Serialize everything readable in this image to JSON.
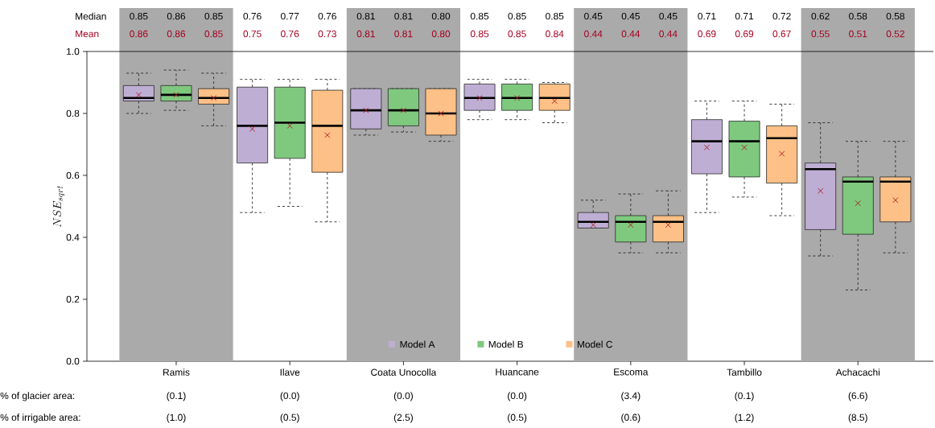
{
  "chart_data": {
    "type": "box",
    "ylabel": "NSE_{sqrt}",
    "categories": [
      "Ramis",
      "Ilave",
      "Coata Unocolla",
      "Huancane",
      "Escoma",
      "Tambillo",
      "Achacachi"
    ],
    "ylim": [
      0,
      1
    ],
    "yticks": [
      {
        "value": 0,
        "label": "0.0"
      },
      {
        "value": 0.2,
        "label": "0.2"
      },
      {
        "value": 0.4,
        "label": "0.4"
      },
      {
        "value": 0.6,
        "label": "0.6"
      },
      {
        "value": 0.8,
        "label": "0.8"
      },
      {
        "value": 1,
        "label": "1.0"
      }
    ],
    "grid": false,
    "legend": "bottom",
    "bands": [
      {
        "axis": "x",
        "from": "Ramis",
        "to": "Ramis",
        "color": "#aaaaaa"
      },
      {
        "axis": "x",
        "from": "Coata Unocolla",
        "to": "Coata Unocolla",
        "color": "#aaaaaa"
      },
      {
        "axis": "x",
        "from": "Escoma",
        "to": "Escoma",
        "color": "#aaaaaa"
      },
      {
        "axis": "x",
        "from": "Achacachi",
        "to": "Achacachi",
        "color": "#aaaaaa"
      }
    ],
    "annotations": [
      "Median",
      "0.85",
      "0.86",
      "0.85",
      "0.76",
      "0.77",
      "0.76",
      "0.81",
      "0.81",
      "0.80",
      "0.85",
      "0.85",
      "0.85",
      "0.45",
      "0.45",
      "0.45",
      "0.71",
      "0.71",
      "0.72",
      "0.62",
      "0.58",
      "0.58",
      "Mean",
      "0.86",
      "0.86",
      "0.85",
      "0.75",
      "0.76",
      "0.73",
      "0.81",
      "0.81",
      "0.80",
      "0.85",
      "0.85",
      "0.84",
      "0.44",
      "0.44",
      "0.44",
      "0.69",
      "0.69",
      "0.67",
      "0.55",
      "0.51",
      "0.52",
      "% of glacier area:",
      "(0.1)",
      "(0.0)",
      "(0.0)",
      "(0.0)",
      "(3.4)",
      "(0.1)",
      "(6.6)",
      "% of irrigable area:",
      "(1.0)",
      "(0.5)",
      "(2.5)",
      "(0.5)",
      "(0.6)",
      "(1.2)",
      "(8.5)"
    ],
    "series": [
      {
        "name": "Model A",
        "color": "#bfaed4",
        "boxes": [
          {
            "low": 0.8,
            "q1": 0.84,
            "median": 0.85,
            "q3": 0.89,
            "high": 0.93,
            "mean": 0.86
          },
          {
            "low": 0.48,
            "q1": 0.64,
            "median": 0.76,
            "q3": 0.885,
            "high": 0.91,
            "mean": 0.75
          },
          {
            "low": 0.73,
            "q1": 0.75,
            "median": 0.81,
            "q3": 0.88,
            "high": 0.88,
            "mean": 0.81
          },
          {
            "low": 0.78,
            "q1": 0.81,
            "median": 0.85,
            "q3": 0.895,
            "high": 0.91,
            "mean": 0.85
          },
          {
            "low": 0.43,
            "q1": 0.43,
            "median": 0.45,
            "q3": 0.48,
            "high": 0.52,
            "mean": 0.44
          },
          {
            "low": 0.48,
            "q1": 0.605,
            "median": 0.71,
            "q3": 0.78,
            "high": 0.84,
            "mean": 0.69
          },
          {
            "low": 0.34,
            "q1": 0.425,
            "median": 0.62,
            "q3": 0.64,
            "high": 0.77,
            "mean": 0.55
          }
        ]
      },
      {
        "name": "Model B",
        "color": "#7fc97f",
        "boxes": [
          {
            "low": 0.81,
            "q1": 0.84,
            "median": 0.86,
            "q3": 0.89,
            "high": 0.94,
            "mean": 0.86
          },
          {
            "low": 0.5,
            "q1": 0.655,
            "median": 0.77,
            "q3": 0.885,
            "high": 0.91,
            "mean": 0.76
          },
          {
            "low": 0.74,
            "q1": 0.76,
            "median": 0.81,
            "q3": 0.88,
            "high": 0.88,
            "mean": 0.81
          },
          {
            "low": 0.78,
            "q1": 0.81,
            "median": 0.85,
            "q3": 0.895,
            "high": 0.91,
            "mean": 0.85
          },
          {
            "low": 0.35,
            "q1": 0.385,
            "median": 0.45,
            "q3": 0.47,
            "high": 0.54,
            "mean": 0.44
          },
          {
            "low": 0.53,
            "q1": 0.595,
            "median": 0.71,
            "q3": 0.775,
            "high": 0.84,
            "mean": 0.69
          },
          {
            "low": 0.23,
            "q1": 0.41,
            "median": 0.58,
            "q3": 0.595,
            "high": 0.71,
            "mean": 0.51
          }
        ]
      },
      {
        "name": "Model C",
        "color": "#fdc086",
        "boxes": [
          {
            "low": 0.76,
            "q1": 0.83,
            "median": 0.85,
            "q3": 0.88,
            "high": 0.93,
            "mean": 0.85
          },
          {
            "low": 0.45,
            "q1": 0.61,
            "median": 0.76,
            "q3": 0.875,
            "high": 0.91,
            "mean": 0.73
          },
          {
            "low": 0.71,
            "q1": 0.73,
            "median": 0.8,
            "q3": 0.88,
            "high": 0.88,
            "mean": 0.8
          },
          {
            "low": 0.77,
            "q1": 0.81,
            "median": 0.85,
            "q3": 0.895,
            "high": 0.9,
            "mean": 0.84
          },
          {
            "low": 0.35,
            "q1": 0.385,
            "median": 0.45,
            "q3": 0.47,
            "high": 0.55,
            "mean": 0.44
          },
          {
            "low": 0.47,
            "q1": 0.575,
            "median": 0.72,
            "q3": 0.76,
            "high": 0.83,
            "mean": 0.67
          },
          {
            "low": 0.35,
            "q1": 0.45,
            "median": 0.58,
            "q3": 0.595,
            "high": 0.71,
            "mean": 0.52
          }
        ]
      }
    ]
  }
}
